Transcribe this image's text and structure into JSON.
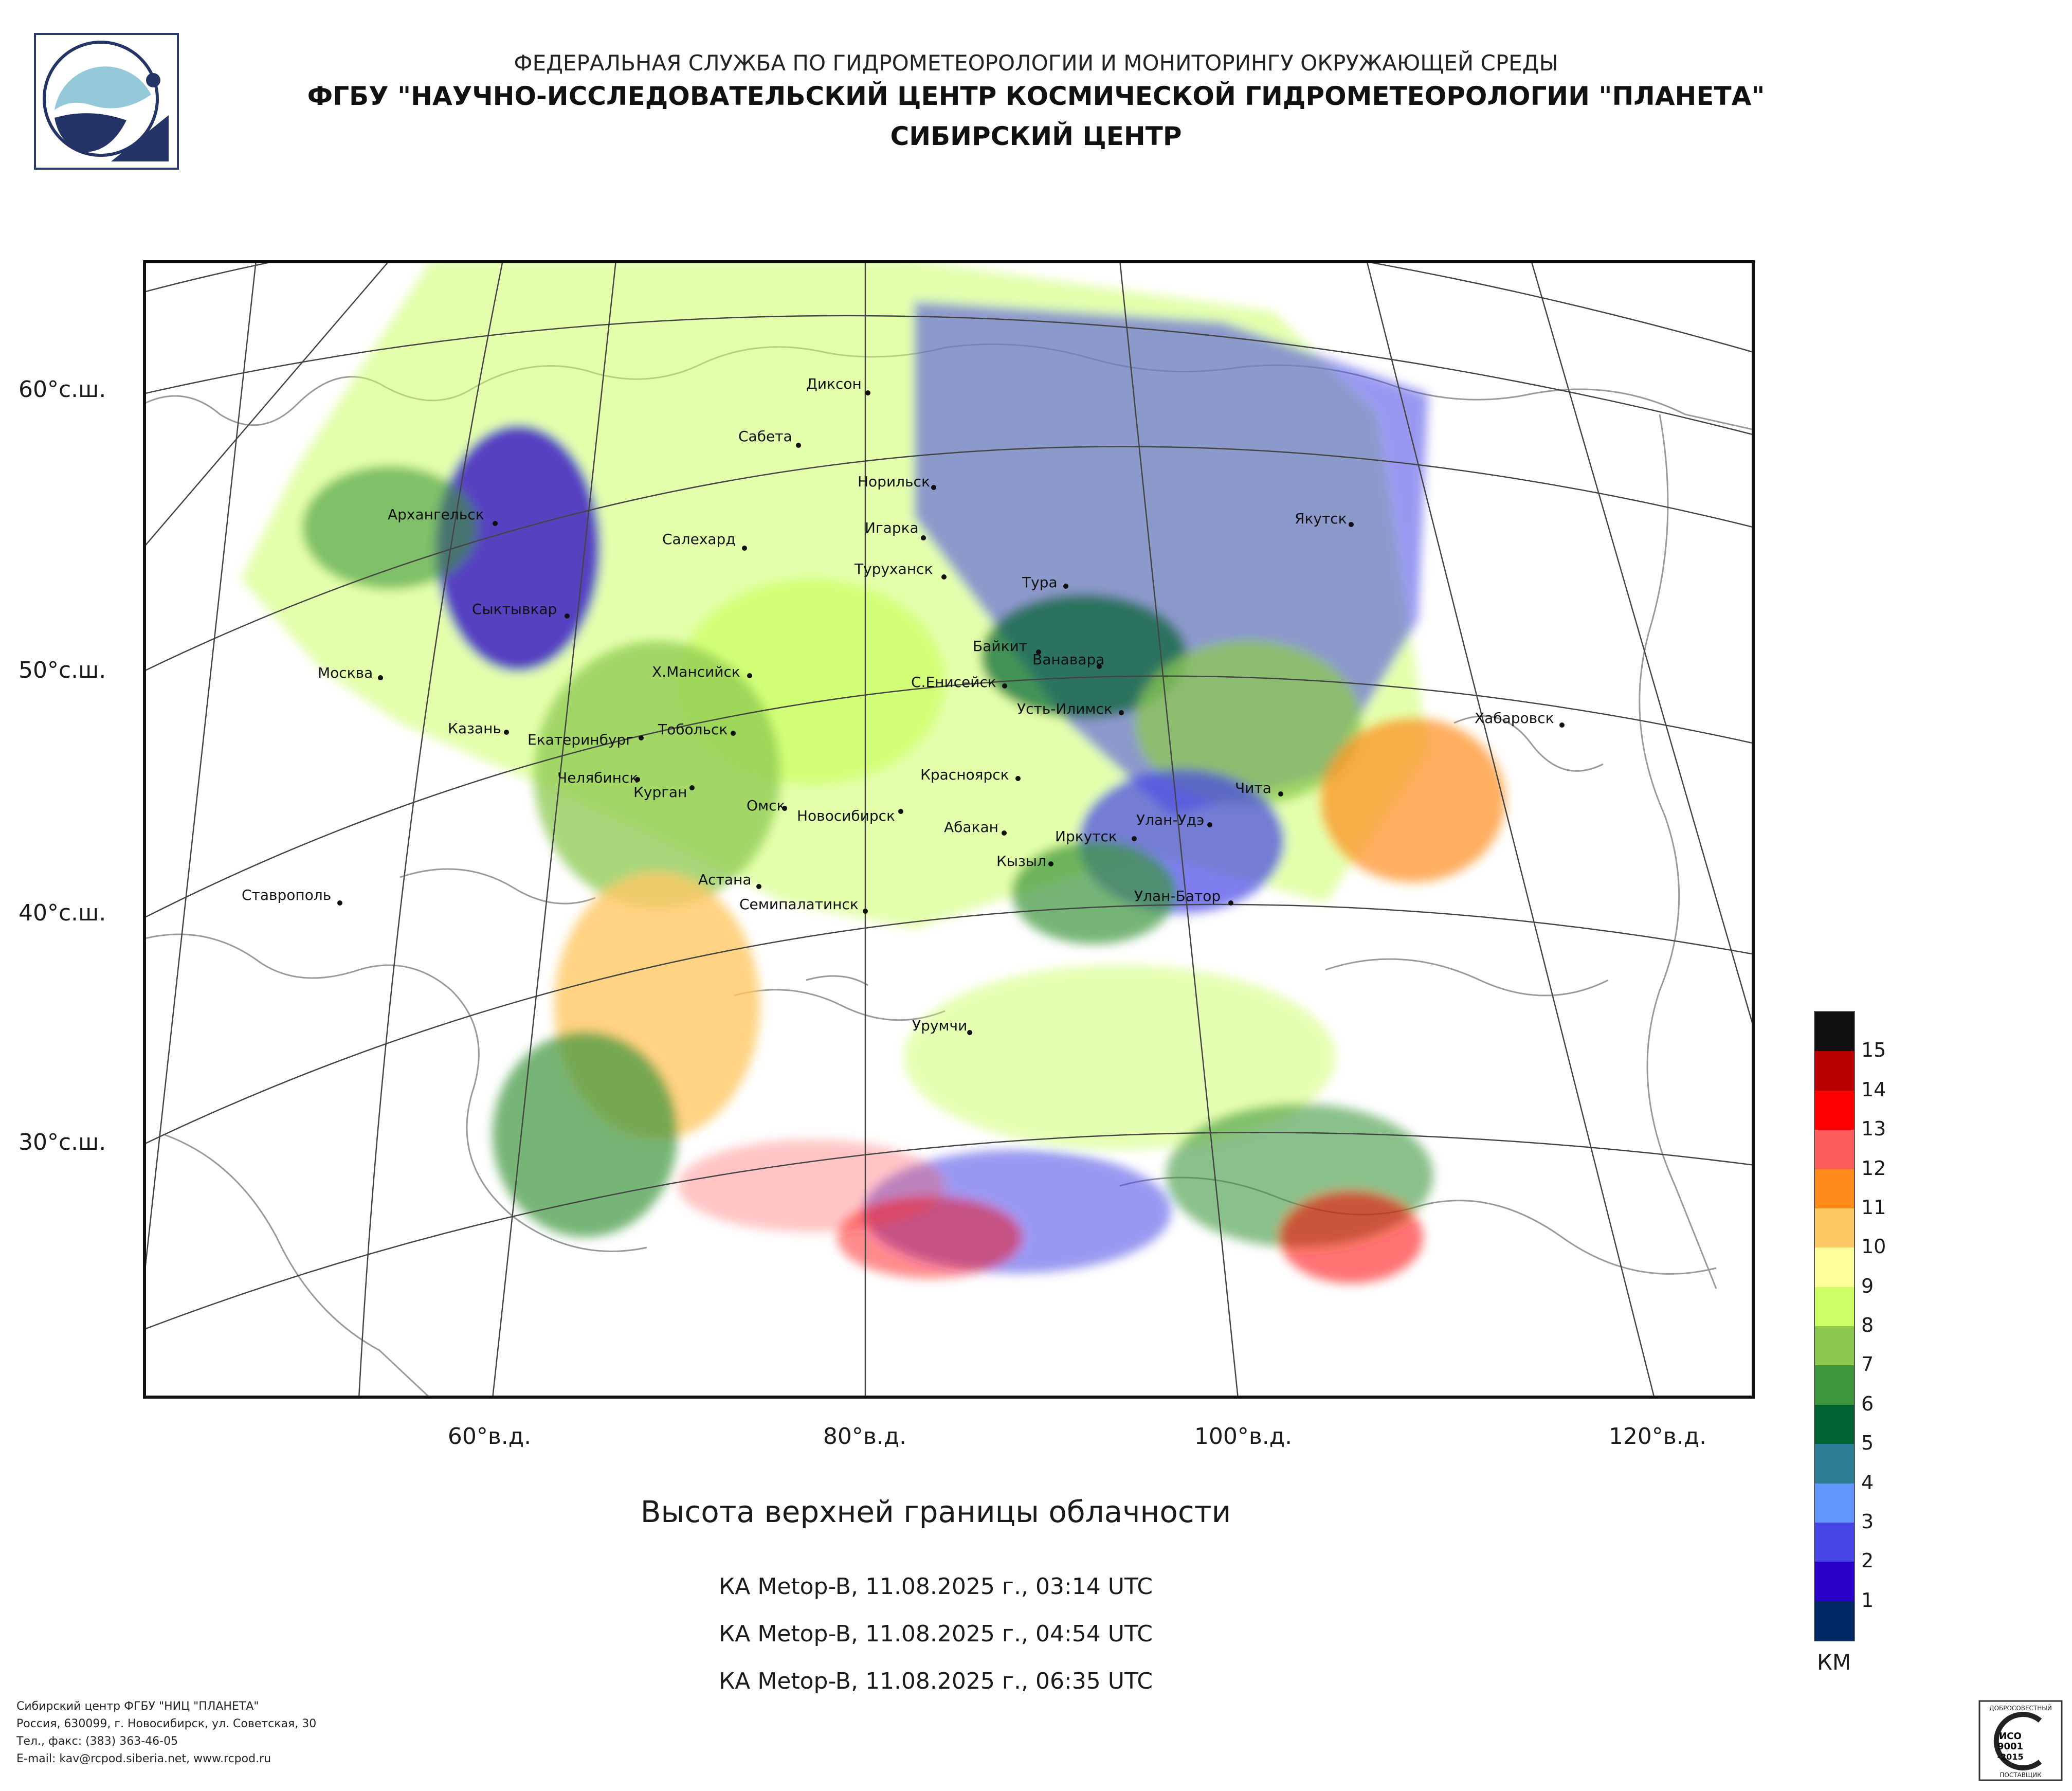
{
  "header": {
    "line1": "ФЕДЕРАЛЬНАЯ СЛУЖБА ПО ГИДРОМЕТЕОРОЛОГИИ И МОНИТОРИНГУ ОКРУЖАЮЩЕЙ СРЕДЫ",
    "line2": "ФГБУ \"НАУЧНО-ИССЛЕДОВАТЕЛЬСКИЙ ЦЕНТР КОСМИЧЕСКОЙ ГИДРОМЕТЕОРОЛОГИИ \"ПЛАНЕТА\"",
    "line3": "СИБИРСКИЙ ЦЕНТР"
  },
  "icons": {
    "logo": "planeta-logo-icon",
    "certificate": "iso-certificate-icon"
  },
  "colors": {
    "frame": "#111111",
    "grid": "#444444",
    "coast": "#9a9a9a",
    "dot": "#111111"
  },
  "latitude_labels": [
    "60°с.ш.",
    "50°с.ш.",
    "40°с.ш.",
    "30°с.ш."
  ],
  "longitude_labels": [
    "60°в.д.",
    "80°в.д.",
    "100°в.д.",
    "120°в.д."
  ],
  "cities": [
    "Диксон",
    "Сабета",
    "Норильск",
    "Игарка",
    "Салехард",
    "Туруханск",
    "Архангельск",
    "Тура",
    "Якутск",
    "Сыктывкар",
    "Байкит",
    "Ванавара",
    "Москва",
    "Х.Мансийск",
    "С.Енисейск",
    "Усть-Илимск",
    "Казань",
    "Екатеринбург",
    "Тобольск",
    "Хабаровск",
    "Челябинск",
    "Курган",
    "Красноярск",
    "Чита",
    "Омск",
    "Новосибирск",
    "Абакан",
    "Улан-Удэ",
    "Иркутск",
    "Кызыл",
    "Ставрополь",
    "Астана",
    "Семипалатинск",
    "Улан-Батор",
    "Урумчи"
  ],
  "map_title": "Высота верхней границы облачности",
  "passes": [
    "КА Metop-B, 11.08.2025 г., 03:14 UTC",
    "КА Metop-B, 11.08.2025 г., 04:54 UTC",
    "КА Metop-B, 11.08.2025 г., 06:35 UTC"
  ],
  "legend": {
    "unit": "КМ",
    "labels": [
      "15",
      "14",
      "13",
      "12",
      "11",
      "10",
      "9",
      "8",
      "7",
      "6",
      "5",
      "4",
      "3",
      "2",
      "1"
    ],
    "colors_top_to_bottom": [
      "#111111",
      "#b80000",
      "#ff0000",
      "#ff5c5c",
      "#ff8c1a",
      "#ffc864",
      "#ffff99",
      "#ccff66",
      "#8cc850",
      "#3c963c",
      "#006432",
      "#2d7d96",
      "#6496ff",
      "#4646e6",
      "#2800c8",
      "#002864"
    ]
  },
  "footer": [
    "Сибирский центр ФГБУ \"НИЦ \"ПЛАНЕТА\"",
    "Россия, 630099, г. Новосибирск, ул. Советская, 30",
    "Тел., факс: (383) 363-46-05",
    "E-mail: kav@rcpod.siberia.net, www.rcpod.ru"
  ],
  "certificate": {
    "top": "ДОБРОСОВЕСТНЫЙ",
    "mid1": "ИСО",
    "mid2": "9001",
    "mid3": "-2015",
    "bottom": "ПОСТАВЩИК"
  }
}
